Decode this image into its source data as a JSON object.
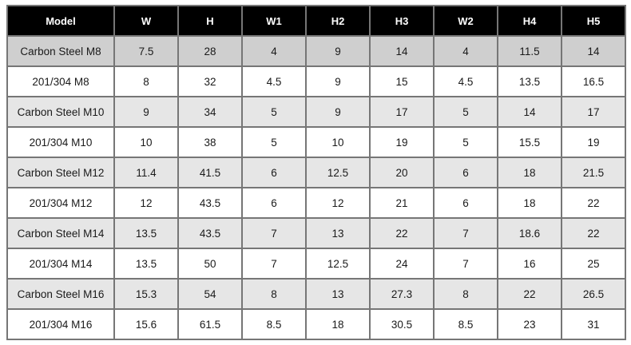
{
  "page": {
    "background": "#ffffff"
  },
  "table": {
    "title": "fastener-dimensions-spec-table",
    "style": {
      "header_bg": "#000000",
      "header_text": "#ffffff",
      "border_color": "#767676",
      "first_shaded_row_bg": "#cfcfcf",
      "shaded_row_bg": "#e6e6e6",
      "plain_row_bg": "#ffffff",
      "cell_text": "#1a1a1a"
    },
    "columns": [
      "Model",
      "W",
      "H",
      "W1",
      "H2",
      "H3",
      "W2",
      "H4",
      "H5"
    ],
    "rows": [
      {
        "shaded": true,
        "cells": [
          "Carbon Steel M8",
          "7.5",
          "28",
          "4",
          "9",
          "14",
          "4",
          "11.5",
          "14"
        ]
      },
      {
        "shaded": false,
        "cells": [
          "201/304 M8",
          "8",
          "32",
          "4.5",
          "9",
          "15",
          "4.5",
          "13.5",
          "16.5"
        ]
      },
      {
        "shaded": true,
        "cells": [
          "Carbon Steel M10",
          "9",
          "34",
          "5",
          "9",
          "17",
          "5",
          "14",
          "17"
        ]
      },
      {
        "shaded": false,
        "cells": [
          "201/304 M10",
          "10",
          "38",
          "5",
          "10",
          "19",
          "5",
          "15.5",
          "19"
        ]
      },
      {
        "shaded": true,
        "cells": [
          "Carbon Steel M12",
          "11.4",
          "41.5",
          "6",
          "12.5",
          "20",
          "6",
          "18",
          "21.5"
        ]
      },
      {
        "shaded": false,
        "cells": [
          "201/304 M12",
          "12",
          "43.5",
          "6",
          "12",
          "21",
          "6",
          "18",
          "22"
        ]
      },
      {
        "shaded": true,
        "cells": [
          "Carbon Steel M14",
          "13.5",
          "43.5",
          "7",
          "13",
          "22",
          "7",
          "18.6",
          "22"
        ]
      },
      {
        "shaded": false,
        "cells": [
          "201/304 M14",
          "13.5",
          "50",
          "7",
          "12.5",
          "24",
          "7",
          "16",
          "25"
        ]
      },
      {
        "shaded": true,
        "cells": [
          "Carbon Steel M16",
          "15.3",
          "54",
          "8",
          "13",
          "27.3",
          "8",
          "22",
          "26.5"
        ]
      },
      {
        "shaded": false,
        "cells": [
          "201/304 M16",
          "15.6",
          "61.5",
          "8.5",
          "18",
          "30.5",
          "8.5",
          "23",
          "31"
        ]
      }
    ]
  },
  "chart_data": {
    "type": "table",
    "title": "Fastener model dimension specifications",
    "columns": [
      "Model",
      "W",
      "H",
      "W1",
      "H2",
      "H3",
      "W2",
      "H4",
      "H5"
    ],
    "rows": [
      [
        "Carbon Steel M8",
        7.5,
        28,
        4,
        9,
        14,
        4,
        11.5,
        14
      ],
      [
        "201/304 M8",
        8,
        32,
        4.5,
        9,
        15,
        4.5,
        13.5,
        16.5
      ],
      [
        "Carbon Steel M10",
        9,
        34,
        5,
        9,
        17,
        5,
        14,
        17
      ],
      [
        "201/304 M10",
        10,
        38,
        5,
        10,
        19,
        5,
        15.5,
        19
      ],
      [
        "Carbon Steel M12",
        11.4,
        41.5,
        6,
        12.5,
        20,
        6,
        18,
        21.5
      ],
      [
        "201/304 M12",
        12,
        43.5,
        6,
        12,
        21,
        6,
        18,
        22
      ],
      [
        "Carbon Steel M14",
        13.5,
        43.5,
        7,
        13,
        22,
        7,
        18.6,
        22
      ],
      [
        "201/304 M14",
        13.5,
        50,
        7,
        12.5,
        24,
        7,
        16,
        25
      ],
      [
        "Carbon Steel M16",
        15.3,
        54,
        8,
        13,
        27.3,
        8,
        22,
        26.5
      ],
      [
        "201/304 M16",
        15.6,
        61.5,
        8.5,
        18,
        30.5,
        8.5,
        23,
        31
      ]
    ],
    "layout": {
      "header_style": "black background, white bold text",
      "row_striping": "carbon-steel rows shaded gray, 201/304 rows white",
      "grid": true
    }
  }
}
